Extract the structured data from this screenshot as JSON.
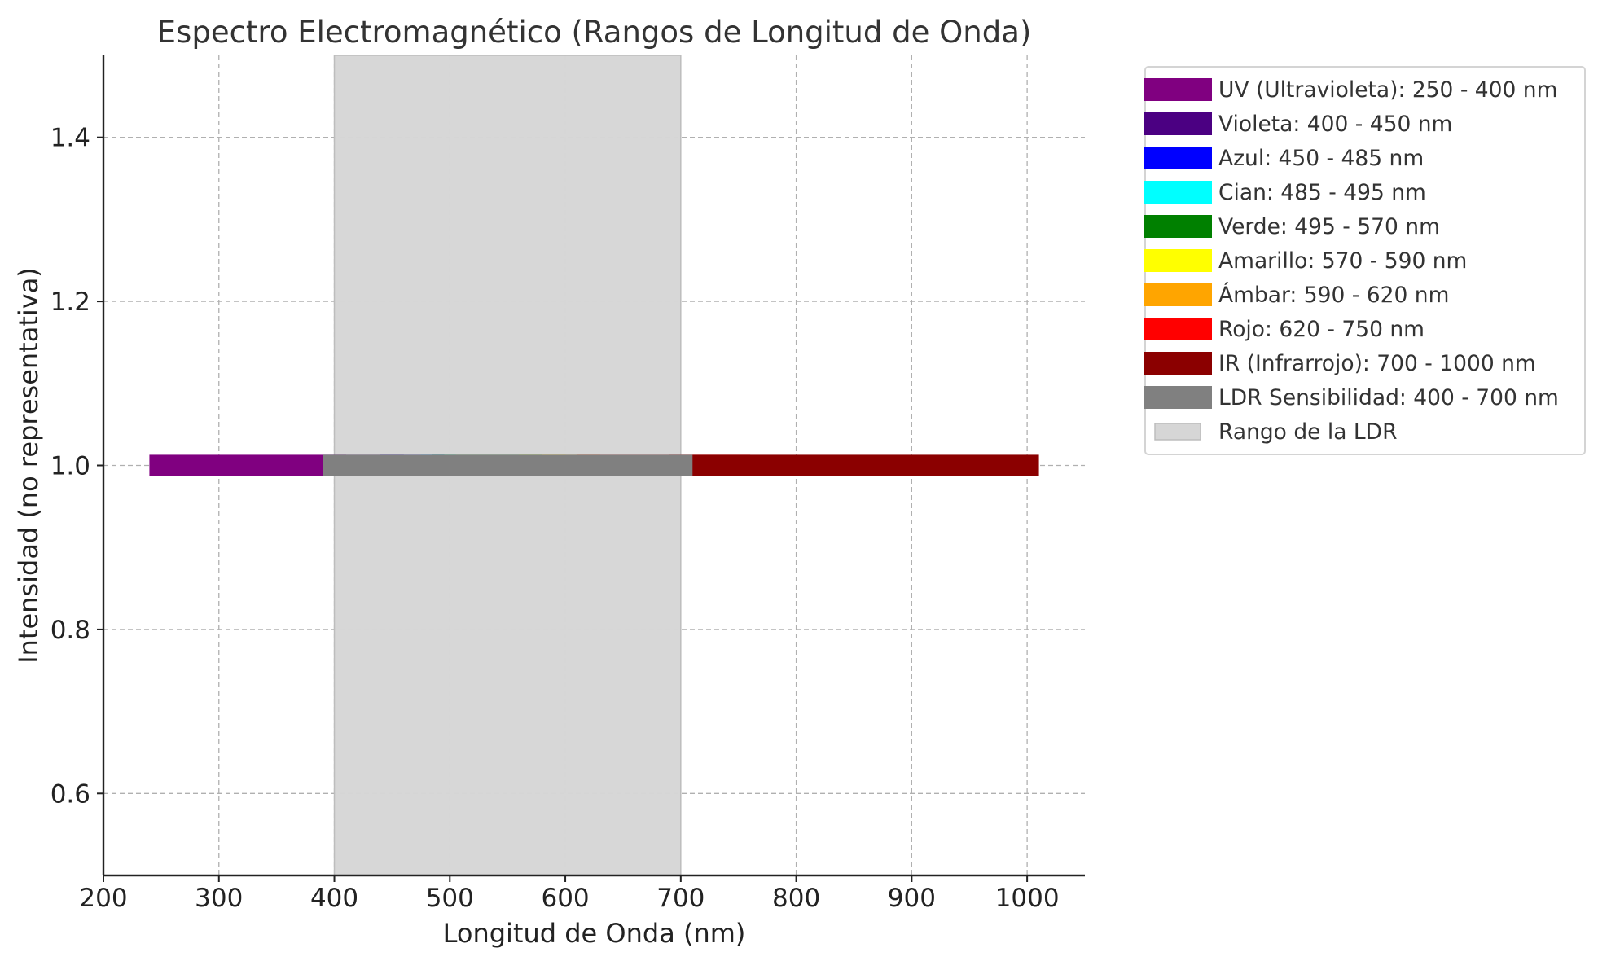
{
  "chart_data": {
    "type": "bar",
    "orientation": "horizontal",
    "title": "Espectro Electromagnético (Rangos de Longitud de Onda)",
    "xlabel": "Longitud de Onda (nm)",
    "ylabel": "Intensidad (no representativa)",
    "xlim": [
      200,
      1050
    ],
    "ylim": [
      0.5,
      1.5
    ],
    "xticks": [
      200,
      300,
      400,
      500,
      600,
      700,
      800,
      900,
      1000
    ],
    "yticks": [
      0.6,
      0.8,
      1.0,
      1.2,
      1.4
    ],
    "xtick_labels": [
      "200",
      "300",
      "400",
      "500",
      "600",
      "700",
      "800",
      "900",
      "1000"
    ],
    "ytick_labels": [
      "0.6",
      "0.8",
      "1.0",
      "1.2",
      "1.4"
    ],
    "grid": true,
    "legend_position": "outside-right-top",
    "bar_y": 1.0,
    "bar_half_height": 0.013,
    "series": [
      {
        "name": "UV (Ultravioleta): 250 - 400 nm",
        "start": 250,
        "end": 400,
        "color": "#800080"
      },
      {
        "name": "Violeta: 400 - 450 nm",
        "start": 400,
        "end": 450,
        "color": "#4b0082"
      },
      {
        "name": "Azul: 450 - 485 nm",
        "start": 450,
        "end": 485,
        "color": "#0000ff"
      },
      {
        "name": "Cian: 485 - 495 nm",
        "start": 485,
        "end": 495,
        "color": "#00ffff"
      },
      {
        "name": "Verde: 495 - 570 nm",
        "start": 495,
        "end": 570,
        "color": "#008000"
      },
      {
        "name": "Amarillo: 570 - 590 nm",
        "start": 570,
        "end": 590,
        "color": "#ffff00"
      },
      {
        "name": "Ámbar: 590 - 620 nm",
        "start": 590,
        "end": 620,
        "color": "#ffa500"
      },
      {
        "name": "Rojo: 620 - 750 nm",
        "start": 620,
        "end": 750,
        "color": "#ff0000"
      },
      {
        "name": "IR (Infrarrojo): 700 - 1000 nm",
        "start": 700,
        "end": 1000,
        "color": "#8b0000"
      },
      {
        "name": "LDR Sensibilidad: 400 - 700 nm",
        "start": 400,
        "end": 700,
        "color": "#808080"
      }
    ],
    "shaded_region": {
      "name": "Rango de la LDR",
      "start": 400,
      "end": 700,
      "color": "#d6d6d6"
    }
  }
}
